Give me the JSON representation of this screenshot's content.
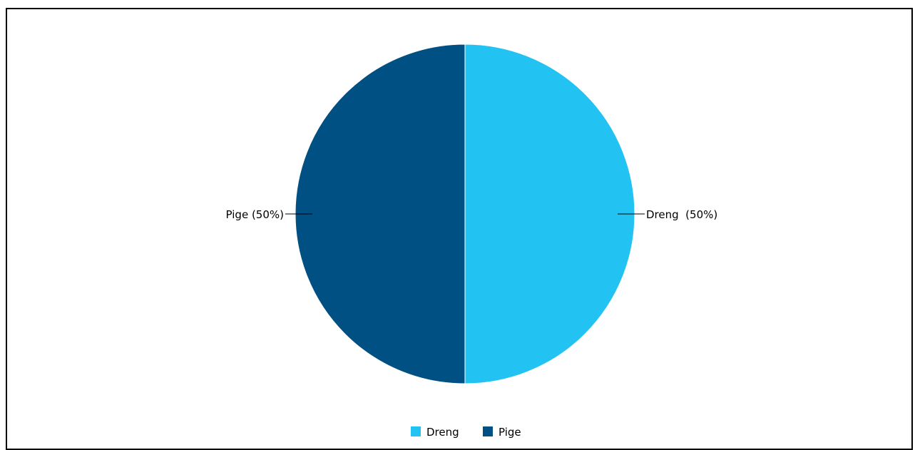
{
  "chart_data": {
    "type": "pie",
    "title": "",
    "labels": [
      "Dreng",
      "Pige"
    ],
    "values": [
      50,
      50
    ],
    "colors": [
      "#22c3f3",
      "#005083"
    ],
    "slice_labels": [
      "Dreng  (50%)",
      "Pige (50%)"
    ],
    "legend": {
      "position": "bottom",
      "entries": [
        "Dreng",
        "Pige"
      ]
    }
  }
}
